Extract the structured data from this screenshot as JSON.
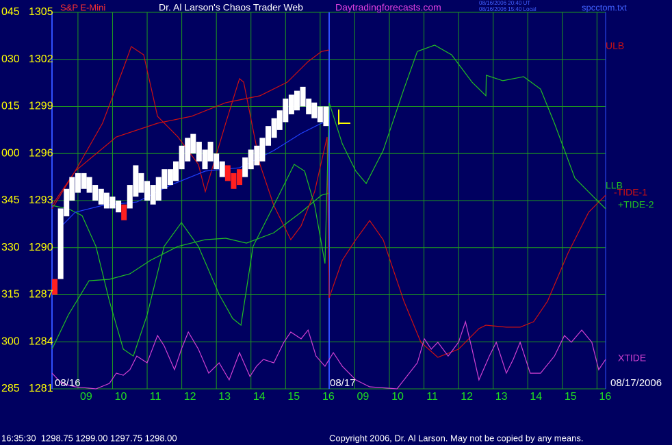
{
  "chart_data": {
    "type": "ohlc",
    "title": "Dr. Al Larson's Chaos Trader Web",
    "subtitle": "Daytradingforecasts.com",
    "symbol": "S&P E-Mini",
    "file": "spcctom.txt",
    "timestamps": [
      "08/16/2006 20:40 UT",
      "08/16/2006 15:40 Local"
    ],
    "date_labels": [
      "08/16",
      "08/17",
      "08/17/2006"
    ],
    "status": "16:35:30  1298.75 1299.00 1297.75 1298.00",
    "copyright": "Copyright 2006, Dr. Al Larson. May not be copied by any means.",
    "xlim": [
      8.25,
      24.25
    ],
    "xticks": [
      {
        "value": 9,
        "label": "09"
      },
      10,
      11,
      12,
      13,
      14,
      15,
      16,
      {
        "value": 17,
        "label": "09"
      },
      {
        "value": 18,
        "label": "10"
      },
      {
        "value": 19,
        "label": "11"
      },
      {
        "value": 20,
        "label": "12"
      },
      {
        "value": 21,
        "label": "13"
      },
      {
        "value": 22,
        "label": "14"
      },
      {
        "value": 23,
        "label": "15"
      },
      {
        "value": 24,
        "label": "16"
      }
    ],
    "ylim": [
      1281,
      1305
    ],
    "yticks": [
      1281,
      1284,
      1287,
      1290,
      1293,
      1296,
      1299,
      1302,
      1305
    ],
    "angle_labels": [
      "285",
      "300",
      "315",
      "330",
      "345",
      "000",
      "015",
      "030",
      "045"
    ],
    "grid": true,
    "bars": {
      "x": [
        8.33,
        8.5,
        8.67,
        8.83,
        9,
        9.17,
        9.33,
        9.5,
        9.67,
        9.83,
        10,
        10.17,
        10.33,
        10.5,
        10.67,
        10.83,
        11,
        11.17,
        11.33,
        11.5,
        11.67,
        11.83,
        12,
        12.17,
        12.33,
        12.5,
        12.67,
        12.83,
        13,
        13.17,
        13.33,
        13.5,
        13.67,
        13.83,
        14,
        14.17,
        14.33,
        14.5,
        14.67,
        14.83,
        15,
        15.17,
        15.33,
        15.5,
        15.67,
        15.83,
        16,
        16.17
      ],
      "high": [
        1288.0,
        1292.5,
        1293.75,
        1294.5,
        1294.75,
        1294.75,
        1294.5,
        1294.0,
        1293.75,
        1293.5,
        1293.25,
        1293.0,
        1292.75,
        1294.0,
        1295.25,
        1294.75,
        1294.25,
        1294.0,
        1294.5,
        1295.0,
        1295.0,
        1295.5,
        1296.5,
        1297.0,
        1297.25,
        1296.75,
        1296.25,
        1296.75,
        1296.0,
        1295.5,
        1295.25,
        1294.75,
        1295.0,
        1295.75,
        1296.25,
        1296.5,
        1297.0,
        1297.75,
        1298.25,
        1298.75,
        1299.5,
        1299.75,
        1300.0,
        1300.25,
        1299.5,
        1299.25,
        1299.0,
        1299.0
      ],
      "low": [
        1287.0,
        1288.0,
        1292.0,
        1293.0,
        1293.5,
        1293.75,
        1293.5,
        1293.0,
        1292.75,
        1292.5,
        1292.5,
        1292.25,
        1291.75,
        1292.5,
        1293.25,
        1293.5,
        1293.0,
        1292.75,
        1293.0,
        1293.75,
        1294.0,
        1294.25,
        1295.0,
        1295.5,
        1296.0,
        1295.5,
        1295.0,
        1295.5,
        1295.0,
        1294.5,
        1294.25,
        1293.75,
        1294.0,
        1294.5,
        1295.0,
        1295.25,
        1295.5,
        1296.5,
        1297.0,
        1297.5,
        1298.0,
        1298.5,
        1298.75,
        1299.0,
        1298.5,
        1298.25,
        1298.0,
        1297.75
      ],
      "colors": [
        "#ff2020",
        "#ffffff",
        "#ffffff",
        "#ffffff",
        "#ffffff",
        "#ffffff",
        "#ffffff",
        "#ffffff",
        "#ffffff",
        "#ffffff",
        "#ffffff",
        "#ffffff",
        "#ff2020",
        "#ffffff",
        "#ffffff",
        "#ffffff",
        "#ffffff",
        "#ffffff",
        "#ffffff",
        "#ffffff",
        "#ffffff",
        "#ffffff",
        "#ffffff",
        "#ffffff",
        "#ffffff",
        "#ffffff",
        "#ffffff",
        "#ffffff",
        "#ffffff",
        "#ffffff",
        "#ff2020",
        "#ff2020",
        "#ff2020",
        "#ffffff",
        "#ffffff",
        "#ffffff",
        "#ffffff",
        "#ffffff",
        "#ffffff",
        "#ffffff",
        "#ffffff",
        "#ffffff",
        "#ffffff",
        "#ffffff",
        "#ffffff",
        "#ffffff",
        "#ffffff",
        "#ffffff"
      ]
    },
    "series": [
      {
        "name": "ULB",
        "color": "#d01010",
        "x": [
          8.25,
          8.92,
          10.11,
          11.3,
          12.28,
          13.27,
          14.26,
          15.05,
          15.65,
          16.04,
          16.26
        ],
        "values": [
          1292.69,
          1294.88,
          1297.06,
          1297.93,
          1298.37,
          1299.24,
          1299.68,
          1300.55,
          1301.86,
          1302.51,
          1302.6
        ]
      },
      {
        "name": "LLB",
        "color": "#22c022",
        "x": [
          8.25,
          8.72,
          9.32,
          9.91,
          10.5,
          11.1,
          11.89,
          12.68,
          13.27,
          13.87,
          14.66,
          15.45,
          16.04,
          16.26
        ],
        "values": [
          1283.53,
          1285.71,
          1287.89,
          1287.98,
          1288.33,
          1289.2,
          1290.08,
          1290.51,
          1290.6,
          1290.29,
          1290.95,
          1292.26,
          1293.35,
          1293.48
        ]
      },
      {
        "name": "-TIDE-1",
        "color": "#d01010",
        "x": [
          8.25,
          8.92,
          9.71,
          10.31,
          10.54,
          10.9,
          11.3,
          11.89,
          12.48,
          12.68,
          13.27,
          13.67,
          13.79,
          14.26,
          14.66,
          15.15,
          15.45,
          15.84,
          16.2,
          16.26,
          16.64,
          17.03,
          17.43,
          17.82,
          18.42,
          18.91,
          19.4,
          20.0,
          20.59,
          20.79,
          21.38,
          21.78,
          22.17,
          22.57,
          23.16,
          23.76,
          24.25
        ],
        "values": [
          1292.48,
          1294.88,
          1297.93,
          1301.42,
          1302.82,
          1302.29,
          1298.37,
          1297.06,
          1295.31,
          1293.57,
          1297.93,
          1300.77,
          1300.55,
          1295.31,
          1292.69,
          1290.51,
          1291.39,
          1293.57,
          1297.06,
          1286.8,
          1289.2,
          1290.51,
          1291.73,
          1290.51,
          1286.59,
          1283.97,
          1283.01,
          1283.53,
          1284.84,
          1285.06,
          1284.93,
          1284.93,
          1285.28,
          1286.59,
          1289.64,
          1292.26,
          1293.35
        ]
      },
      {
        "name": "+TIDE-2",
        "color": "#22c022",
        "x": [
          8.25,
          8.72,
          9.12,
          9.52,
          9.91,
          10.31,
          10.6,
          11.0,
          11.49,
          11.99,
          12.48,
          13.08,
          13.47,
          13.71,
          14.06,
          14.66,
          15.25,
          15.55,
          15.84,
          16.14,
          16.26,
          16.64,
          17.03,
          17.33,
          17.82,
          18.42,
          18.81,
          19.31,
          19.8,
          20.39,
          20.79,
          20.8,
          21.28,
          21.88,
          22.37,
          22.77,
          23.36,
          23.95,
          24.25
        ],
        "values": [
          1292.69,
          1292.48,
          1292.04,
          1290.08,
          1286.59,
          1283.53,
          1283.09,
          1285.71,
          1290.08,
          1291.6,
          1290.08,
          1287.02,
          1285.49,
          1285.06,
          1290.08,
          1292.69,
          1295.31,
          1294.88,
          1292.69,
          1288.99,
          1299.24,
          1296.62,
          1294.88,
          1294.09,
          1296.19,
          1300.11,
          1302.51,
          1302.91,
          1302.29,
          1300.55,
          1299.68,
          1300.99,
          1300.64,
          1300.9,
          1300.11,
          1297.93,
          1294.44,
          1293.13,
          1292.48
        ]
      },
      {
        "name": "XTIDE",
        "color": "#d040d0",
        "x": [
          8.25,
          8.53,
          8.92,
          9.52,
          9.91,
          10.11,
          10.31,
          10.5,
          10.7,
          11.0,
          11.3,
          11.49,
          11.79,
          11.99,
          12.19,
          12.48,
          12.78,
          13.08,
          13.37,
          13.67,
          13.97,
          14.16,
          14.36,
          14.66,
          14.95,
          15.15,
          15.45,
          15.65,
          15.88,
          16.14,
          16.38,
          16.64,
          17.03,
          17.43,
          18.22,
          18.81,
          19.01,
          19.21,
          19.4,
          19.7,
          20.0,
          20.2,
          20.39,
          20.59,
          20.89,
          21.09,
          21.38,
          21.58,
          21.78,
          22.07,
          22.37,
          22.77,
          23.06,
          23.26,
          23.56,
          23.85,
          24.05,
          24.25
        ],
        "values": [
          1282.0,
          1281.35,
          1281.13,
          1281.0,
          1281.35,
          1282.0,
          1281.87,
          1282.22,
          1283.09,
          1282.66,
          1284.4,
          1283.75,
          1282.22,
          1283.53,
          1284.62,
          1283.53,
          1282.0,
          1282.66,
          1281.57,
          1283.31,
          1281.79,
          1282.44,
          1282.88,
          1282.66,
          1283.97,
          1284.62,
          1284.19,
          1284.75,
          1283.09,
          1282.44,
          1283.31,
          1282.44,
          1281.57,
          1281.13,
          1281.0,
          1282.66,
          1284.19,
          1283.53,
          1283.97,
          1283.09,
          1283.97,
          1285.28,
          1283.53,
          1281.57,
          1283.09,
          1283.97,
          1282.0,
          1282.88,
          1283.97,
          1282.0,
          1282.0,
          1283.09,
          1284.4,
          1283.97,
          1284.75,
          1283.97,
          1282.22,
          1282.88
        ]
      },
      {
        "color": "#2040ff",
        "x": [
          8.53,
          8.92,
          9.71,
          10.7,
          11.69,
          12.68,
          13.67,
          14.66,
          15.45,
          16.04,
          16.2
        ],
        "values": [
          1291.39,
          1292.26,
          1292.69,
          1292.91,
          1294.0,
          1294.88,
          1295.09,
          1296.19,
          1297.28,
          1297.93,
          1298.02
        ]
      }
    ]
  }
}
